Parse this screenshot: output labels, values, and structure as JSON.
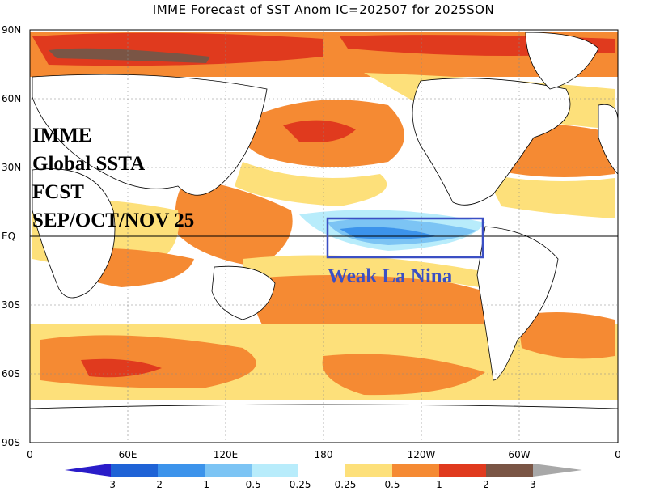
{
  "title": "IMME Forecast of SST Anom IC=202507 for 2025SON",
  "lat_labels": [
    "90N",
    "60N",
    "30N",
    "EQ",
    "30S",
    "60S",
    "90S"
  ],
  "lon_labels": [
    "0",
    "60E",
    "120E",
    "180",
    "120W",
    "60W",
    "0"
  ],
  "overlay_lines": [
    "IMME",
    "Global SSTA",
    "FCST",
    "SEP/OCT/NOV 25"
  ],
  "annotation": "Weak La Nina",
  "colorbar": {
    "labels": [
      "-3",
      "-2",
      "-1",
      "-0.5",
      "-0.25",
      "0.25",
      "0.5",
      "1",
      "2",
      "3"
    ],
    "colors": [
      "#2a1cc9",
      "#1f63d6",
      "#3c93eb",
      "#7cc4f4",
      "#b8ecfb",
      "#ffffff",
      "#fde07a",
      "#f58a33",
      "#e03a1e",
      "#7a5545",
      "#a8a8a8"
    ]
  },
  "map_colors": {
    "ocean_neutral": "#ffffff",
    "warm_weak": "#fde07a",
    "warm_mod": "#f58a33",
    "warm_strong": "#e03a1e",
    "warm_extreme": "#7a5545",
    "cool_weak": "#b8ecfb",
    "cool_mod": "#7cc4f4",
    "cool_strong": "#3c93eb",
    "box": "#3b4fc4"
  }
}
